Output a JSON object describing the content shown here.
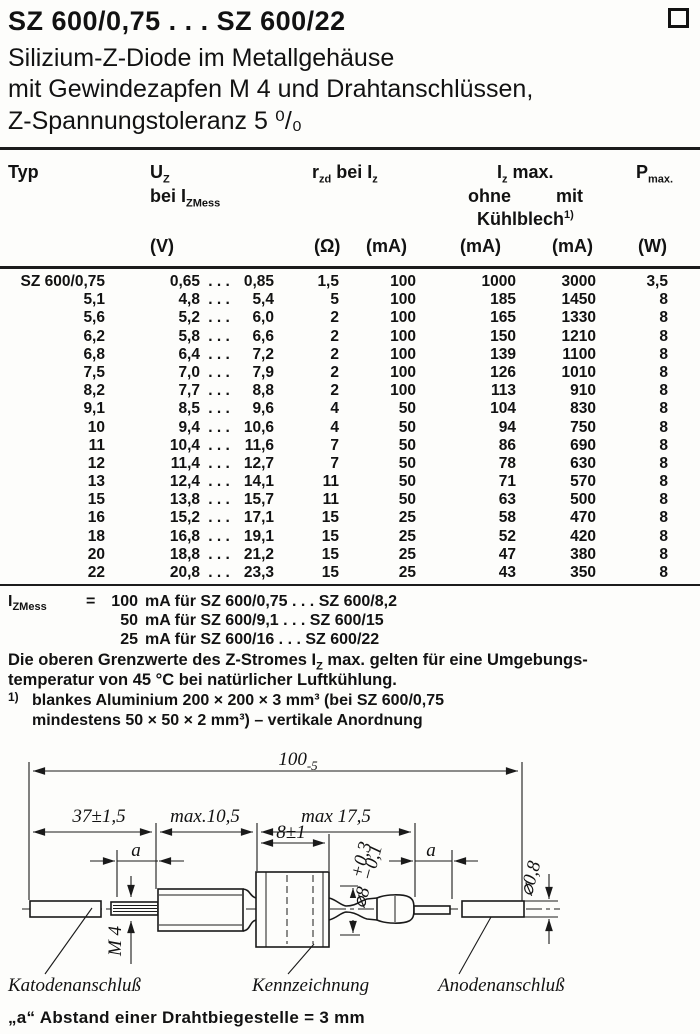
{
  "header": {
    "title": "SZ 600/0,75 . . . SZ 600/22",
    "subtitle_line1": "Silizium-Z-Diode im Metallgehäuse",
    "subtitle_line2": "mit Gewindezapfen M 4 und Drahtanschlüssen,",
    "subtitle_line3": "Z-Spannungstoleranz 5 ⁰/₀"
  },
  "table": {
    "header": {
      "typ": "Typ",
      "uz_base": "U",
      "uz_sub": "Z",
      "uz_line2_pre": "bei ",
      "uz_line2_base": "I",
      "uz_line2_sub": "ZMess",
      "rzd_base": "r",
      "rzd_sub": "zd",
      "rzd_mid": " bei ",
      "rzd_i": "I",
      "rzd_i_sub": "z",
      "izmax_base": "I",
      "izmax_sub": "z",
      "izmax_suffix": " max.",
      "ohne": "ohne",
      "mit": "mit",
      "kuehl": "Kühlblech",
      "kuehl_fn": "1)",
      "pmax_base": "P",
      "pmax_sub": "max.",
      "units": {
        "v": "(V)",
        "ohm": "(Ω)",
        "ma1": "(mA)",
        "ma2": "(mA)",
        "ma3": "(mA)",
        "w": "(W)"
      }
    },
    "dots": ". . .",
    "rows": [
      [
        "SZ 600/0,75",
        "0,65",
        "0,85",
        "1,5",
        "100",
        "1000",
        "3000",
        "3,5"
      ],
      [
        "5,1",
        "4,8",
        "5,4",
        "5",
        "100",
        "185",
        "1450",
        "8"
      ],
      [
        "5,6",
        "5,2",
        "6,0",
        "2",
        "100",
        "165",
        "1330",
        "8"
      ],
      [
        "6,2",
        "5,8",
        "6,6",
        "2",
        "100",
        "150",
        "1210",
        "8"
      ],
      [
        "6,8",
        "6,4",
        "7,2",
        "2",
        "100",
        "139",
        "1100",
        "8"
      ],
      [
        "7,5",
        "7,0",
        "7,9",
        "2",
        "100",
        "126",
        "1010",
        "8"
      ],
      [
        "8,2",
        "7,7",
        "8,8",
        "2",
        "100",
        "113",
        "910",
        "8"
      ],
      [
        "9,1",
        "8,5",
        "9,6",
        "4",
        "50",
        "104",
        "830",
        "8"
      ],
      [
        "10",
        "9,4",
        "10,6",
        "4",
        "50",
        "94",
        "750",
        "8"
      ],
      [
        "11",
        "10,4",
        "11,6",
        "7",
        "50",
        "86",
        "690",
        "8"
      ],
      [
        "12",
        "11,4",
        "12,7",
        "7",
        "50",
        "78",
        "630",
        "8"
      ],
      [
        "13",
        "12,4",
        "14,1",
        "11",
        "50",
        "71",
        "570",
        "8"
      ],
      [
        "15",
        "13,8",
        "15,7",
        "11",
        "50",
        "63",
        "500",
        "8"
      ],
      [
        "16",
        "15,2",
        "17,1",
        "15",
        "25",
        "58",
        "470",
        "8"
      ],
      [
        "18",
        "16,8",
        "19,1",
        "15",
        "25",
        "52",
        "420",
        "8"
      ],
      [
        "20",
        "18,8",
        "21,2",
        "15",
        "25",
        "47",
        "380",
        "8"
      ],
      [
        "22",
        "20,8",
        "23,3",
        "15",
        "25",
        "43",
        "350",
        "8"
      ]
    ]
  },
  "notes": {
    "iz_mess": {
      "symbol_base": "I",
      "symbol_sub": "ZMess",
      "eq": "=",
      "rows": [
        {
          "val": "100",
          "rest": "mA für SZ 600/0,75 . . . SZ 600/8,2"
        },
        {
          "val": "50",
          "rest": "mA für SZ 600/9,1  . . . SZ 600/15"
        },
        {
          "val": "25",
          "rest": "mA für SZ 600/16   . . . SZ 600/22"
        }
      ]
    },
    "limit_line1_a": "Die oberen Grenzwerte des Z-Stromes I",
    "limit_line1_sub": "Z",
    "limit_line1_b": " max. gelten für eine Umgebungs-",
    "limit_line2": "temperatur von 45 °C bei natürlicher Luftkühlung.",
    "fn1_marker": "1)",
    "fn1_line1": "blankes Aluminium 200 × 200 × 3 mm³ (bei SZ 600/0,75",
    "fn1_line2": "mindestens 50 × 50 × 2 mm³)  –  vertikale Anordnung"
  },
  "drawing": {
    "dims": {
      "total": "100",
      "total_tol": "-5",
      "d_left": "37±1,5",
      "d_mid": "max.10,5",
      "d_right": "max 17,5",
      "d_body": "8±1",
      "dia8": "⌀8",
      "dia8_tol_plus": "+0,3",
      "dia8_tol_minus": "−0,1",
      "a_left": "a",
      "a_right": "a",
      "m4": "M 4",
      "dia08": "⌀0,8"
    },
    "labels": {
      "cathode": "Katodenanschluß",
      "marking": "Kennzeichnung",
      "anode": "Anodenanschluß"
    }
  },
  "caption": "„a“ Abstand einer Drahtbiegestelle = 3 mm"
}
